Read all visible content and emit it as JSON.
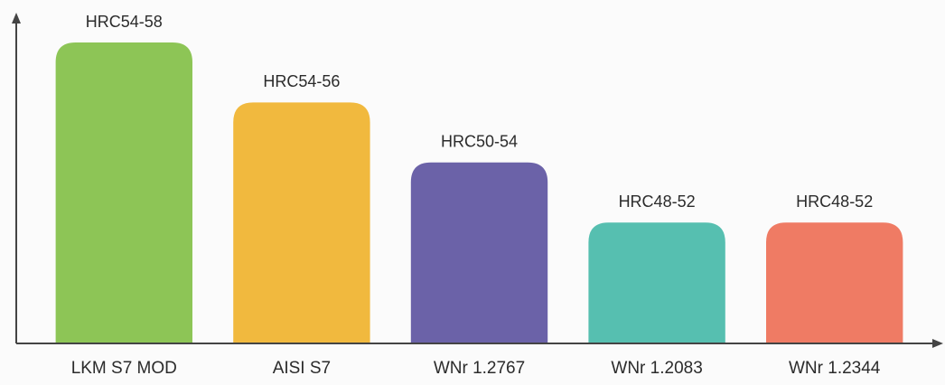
{
  "chart_data": {
    "type": "bar",
    "categories": [
      "LKM S7 MOD",
      "AISI S7",
      "WNr 1.2767",
      "WNr 1.2083",
      "WNr 1.2344"
    ],
    "values": [
      58,
      56,
      54,
      52,
      52
    ],
    "value_labels": [
      "HRC54-58",
      "HRC54-56",
      "HRC50-54",
      "HRC48-52",
      "HRC48-52"
    ],
    "colors": [
      "#8dc556",
      "#f1b93e",
      "#6b62a8",
      "#56bfb0",
      "#ef7b64"
    ],
    "ylim": [
      48,
      58
    ]
  }
}
